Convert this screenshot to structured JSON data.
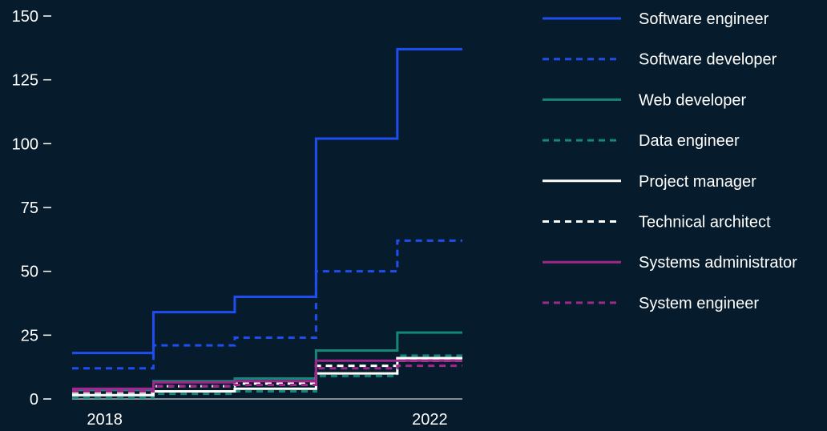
{
  "chart_data": {
    "type": "line",
    "step": "post",
    "title": "",
    "xlabel": "",
    "ylabel": "",
    "xlim": [
      2017.6,
      2022.4
    ],
    "ylim": [
      0,
      150
    ],
    "y_ticks": [
      0,
      25,
      50,
      75,
      100,
      125,
      150
    ],
    "x_ticks": [
      2018,
      2022
    ],
    "x_tick_labels": [
      "2018",
      "2022"
    ],
    "grid": false,
    "legend_position": "right",
    "background_color": "#061b2b",
    "x": [
      2017.6,
      2018.6,
      2019.6,
      2020.6,
      2021.6,
      2022.4
    ],
    "series": [
      {
        "name": "Software engineer",
        "values": [
          18,
          34,
          40,
          102,
          137,
          137
        ],
        "color": "#1f4ef0",
        "dash": "solid"
      },
      {
        "name": "Software developer",
        "values": [
          12,
          21,
          24,
          50,
          62,
          62
        ],
        "color": "#1f4ef0",
        "dash": "dashed"
      },
      {
        "name": "Web developer",
        "values": [
          3.5,
          7,
          8,
          19,
          26,
          26
        ],
        "color": "#14867a",
        "dash": "solid"
      },
      {
        "name": "Data engineer",
        "values": [
          0.5,
          2,
          3,
          9,
          17,
          17
        ],
        "color": "#14867a",
        "dash": "dashed"
      },
      {
        "name": "Project manager",
        "values": [
          1.5,
          3,
          4,
          10,
          16,
          16
        ],
        "color": "#ffffff",
        "dash": "solid"
      },
      {
        "name": "Technical architect",
        "values": [
          2.5,
          5,
          6,
          13,
          15,
          15
        ],
        "color": "#ffffff",
        "dash": "dashed"
      },
      {
        "name": "Systems administrator",
        "values": [
          4,
          6.5,
          7,
          15,
          15,
          15
        ],
        "color": "#a0288c",
        "dash": "solid"
      },
      {
        "name": "System engineer",
        "values": [
          3,
          5,
          5.5,
          12,
          13,
          13
        ],
        "color": "#a0288c",
        "dash": "dashed"
      }
    ]
  }
}
